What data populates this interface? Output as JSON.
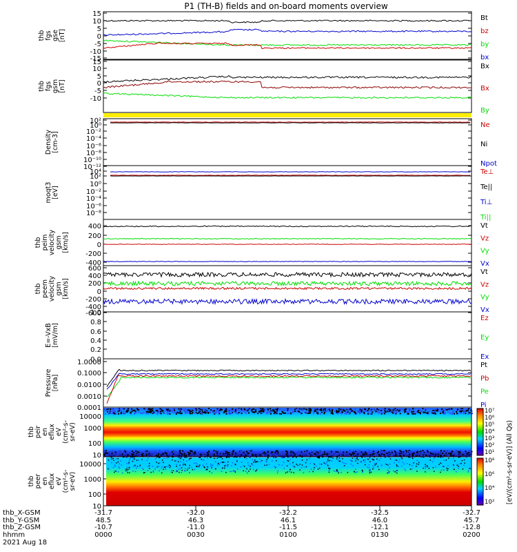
{
  "title": "P1  (TH-B) fields and on-board moments overview",
  "colors": {
    "black": "#000000",
    "red": "#cc0000",
    "green": "#00dd00",
    "blue": "#0000cc",
    "yellow": "#ffee00"
  },
  "panels": [
    {
      "id": "fgs_gse",
      "ylabel": [
        "thb",
        "fgs",
        "gse",
        "[nT]"
      ],
      "ticks": [
        "15",
        "10",
        "5",
        "0",
        "-5",
        "-10",
        "-15"
      ],
      "legend": [
        {
          "t": "Bt",
          "c": "black"
        },
        {
          "t": "bz",
          "c": "red"
        },
        {
          "t": "by",
          "c": "green"
        },
        {
          "t": "bx",
          "c": "blue"
        }
      ]
    },
    {
      "id": "fgs_gsm",
      "ylabel": [
        "thb",
        "fgs",
        "gsm",
        "[nT]"
      ],
      "ticks": [
        "15",
        "10",
        "5",
        "0",
        "-5",
        "-10"
      ],
      "legend": [
        {
          "t": "Bx",
          "c": "black"
        },
        {
          "t": "Bx",
          "c": "red"
        },
        {
          "t": "By",
          "c": "green"
        }
      ]
    },
    {
      "id": "density",
      "ylabel": [
        "Density",
        "[cm-3]"
      ],
      "ticks": [
        "10²",
        "10⁰",
        "10⁻²",
        "10⁻⁴",
        "10⁻⁶",
        "10⁻⁸",
        "10⁻¹⁰",
        "10⁻¹²"
      ],
      "legend": [
        {
          "t": "Ne",
          "c": "red"
        },
        {
          "t": "Ni",
          "c": "black"
        },
        {
          "t": "Npot",
          "c": "blue"
        }
      ]
    },
    {
      "id": "temp",
      "ylabel": [
        "moqt3",
        "[eV]"
      ],
      "ticks": [
        "10⁴",
        "10²",
        "10⁰",
        "10⁻²",
        "10⁻⁴",
        "10⁻⁶",
        "10⁻⁸"
      ],
      "legend": [
        {
          "t": "Te⊥",
          "c": "red"
        },
        {
          "t": "Te||",
          "c": "black"
        },
        {
          "t": "Ti⊥",
          "c": "blue"
        },
        {
          "t": "Ti||",
          "c": "green"
        }
      ]
    },
    {
      "id": "peim_vel",
      "ylabel": [
        "thb",
        "peim",
        "velocity",
        "gsm",
        "[km/s]"
      ],
      "ticks": [
        "400",
        "200",
        "0",
        "-200",
        "-400"
      ],
      "legend": [
        {
          "t": "Vt",
          "c": "black"
        },
        {
          "t": "Vz",
          "c": "red"
        },
        {
          "t": "Vy",
          "c": "green"
        },
        {
          "t": "Vx",
          "c": "blue"
        }
      ]
    },
    {
      "id": "peem_vel",
      "ylabel": [
        "thb",
        "peem",
        "velocity",
        "gsm",
        "[km/s]"
      ],
      "ticks": [
        "600",
        "400",
        "200",
        "0",
        "-200",
        "-400",
        "-600"
      ],
      "legend": [
        {
          "t": "Vt",
          "c": "black"
        },
        {
          "t": "Vz",
          "c": "red"
        },
        {
          "t": "Vy",
          "c": "green"
        },
        {
          "t": "Vx",
          "c": "blue"
        }
      ]
    },
    {
      "id": "efield",
      "ylabel": [
        "E=-VxB",
        "[mV/m]"
      ],
      "ticks": [
        "1.0",
        "0.8",
        "0.6",
        "0.4",
        "0.2",
        "0.0"
      ],
      "legend": [
        {
          "t": "Ez",
          "c": "red"
        },
        {
          "t": "Ey",
          "c": "green"
        },
        {
          "t": "Ex",
          "c": "blue"
        }
      ]
    },
    {
      "id": "pressure",
      "ylabel": [
        "Pressure",
        "[nPa]"
      ],
      "ticks": [
        "1.0000",
        "0.1000",
        "0.0100",
        "0.0010",
        "0.0001"
      ],
      "legend": [
        {
          "t": "Pt",
          "c": "black"
        },
        {
          "t": "Pb",
          "c": "red"
        },
        {
          "t": "Pe",
          "c": "green"
        },
        {
          "t": "Pi",
          "c": "blue"
        }
      ]
    },
    {
      "id": "peir",
      "ylabel": [
        "thb",
        "peir",
        "en",
        "eflux",
        "eV",
        "(cm²-s-",
        "sr-eV)"
      ],
      "ticks": [
        "10000",
        "1000",
        "100",
        "10"
      ],
      "colorbar": [
        "10⁷",
        "10⁶",
        "10⁵",
        "10⁴",
        "10³",
        "10²",
        "10¹"
      ]
    },
    {
      "id": "peer",
      "ylabel": [
        "thb",
        "peer",
        "en",
        "eflux",
        "eV",
        "(cm²-s-",
        "sr-eV)"
      ],
      "ticks": [
        "10000",
        "1000",
        "100",
        "10"
      ],
      "colorbar": [
        "10⁸",
        "10⁶",
        "10⁴",
        "10²"
      ]
    }
  ],
  "colorbar_title": "[eV/(cm²-s-sr-eV)] (All Qs)",
  "xaxis": {
    "rows": [
      {
        "label": "thb_X-GSM",
        "vals": [
          "-31.7",
          "-32.0",
          "-32.2",
          "-32.5",
          "-32.7"
        ]
      },
      {
        "label": "thb_Y-GSM",
        "vals": [
          "48.5",
          "46.3",
          "46.1",
          "46.0",
          "45.7"
        ]
      },
      {
        "label": "thb_Z-GSM",
        "vals": [
          "-10.7",
          "-11.0",
          "-11.5",
          "-12.1",
          "-12.8"
        ]
      },
      {
        "label": "hhmm",
        "vals": [
          "0000",
          "0030",
          "0100",
          "0130",
          "0200"
        ]
      }
    ],
    "date": "2021 Aug 18"
  },
  "chart_data": {
    "type": "line",
    "title": "P1  (TH-B) fields and on-board moments overview",
    "x": [
      "0000",
      "0030",
      "0100",
      "0130",
      "0200"
    ],
    "series": [
      {
        "name": "Bt",
        "values": [
          9,
          10,
          11,
          10,
          10
        ]
      },
      {
        "name": "bz",
        "values": [
          -8,
          -4,
          -7,
          -8,
          -6
        ]
      },
      {
        "name": "by",
        "values": [
          -5,
          -6,
          -7,
          -6,
          -1
        ]
      },
      {
        "name": "bx",
        "values": [
          -1,
          2,
          3,
          3,
          2
        ]
      },
      {
        "name": "Vt",
        "values": [
          390,
          390,
          390,
          390,
          390
        ]
      },
      {
        "name": "Vx",
        "values": [
          -370,
          -370,
          -370,
          -370,
          -370
        ]
      },
      {
        "name": "Vy",
        "values": [
          130,
          130,
          130,
          130,
          130
        ]
      },
      {
        "name": "Vz",
        "values": [
          0,
          0,
          0,
          0,
          0
        ]
      }
    ]
  }
}
